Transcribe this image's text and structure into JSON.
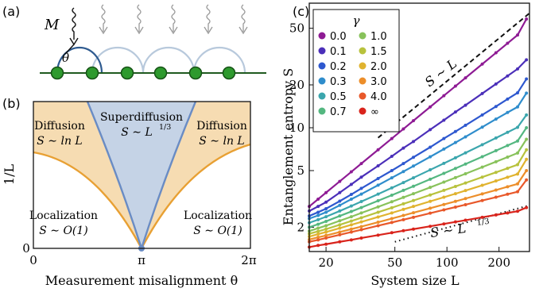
{
  "panel_a": {
    "label": "(a)",
    "measurement_symbol": "M",
    "angle_symbol": "θ"
  },
  "panel_b": {
    "label": "(b)",
    "ylabel": "1/L",
    "xlabel": "Measurement misalignment θ",
    "xticks": [
      "0",
      "π",
      "2π"
    ],
    "yticks": [
      "0"
    ],
    "regions": [
      {
        "line1": "Diffusion",
        "line2": "S ∼ ln L"
      },
      {
        "line1": "Superdiffusion",
        "line2": "S ∼ L",
        "sup": "1/3"
      },
      {
        "line1": "Diffusion",
        "line2": "S ∼ ln L"
      },
      {
        "line1": "Localization",
        "line2": "S ∼ O(1)"
      },
      {
        "line1": "Localization",
        "line2": "S ∼ O(1)"
      }
    ],
    "colors": {
      "diffusion_fill": "#f6dcb2",
      "diffusion_line": "#e8a033",
      "superdiffusion_fill": "#c5d3e6",
      "superdiffusion_line": "#6a8cc4"
    }
  },
  "panel_c": {
    "label": "(c)",
    "legend_title": "γ",
    "annotation_linear": "S ∼ L",
    "annotation_power": "S ∼ L",
    "annotation_power_sup": "1/3"
  },
  "chart_data": {
    "type": "line",
    "title": "",
    "xlabel": "System size L",
    "ylabel": "Entanglement entropy S",
    "xscale": "log",
    "yscale": "log",
    "xlim": [
      16,
      300
    ],
    "ylim": [
      1.35,
      75
    ],
    "xticks": [
      20,
      50,
      100,
      200
    ],
    "yticks": [
      2,
      5,
      10,
      20,
      50
    ],
    "legend_position": "top-left",
    "x": [
      16,
      18,
      20,
      24,
      28,
      32,
      40,
      48,
      56,
      64,
      80,
      96,
      112,
      128,
      160,
      192,
      224,
      256,
      288
    ],
    "series": [
      {
        "name": "0.0",
        "color": "#8e1b94",
        "values": [
          2.8,
          3.15,
          3.5,
          4.2,
          4.9,
          5.6,
          7.0,
          8.4,
          9.8,
          11.2,
          14.0,
          16.8,
          19.6,
          22.4,
          28.0,
          33.6,
          39.2,
          44.8,
          58.0
        ]
      },
      {
        "name": "0.1",
        "color": "#4b2fb9",
        "values": [
          2.6,
          2.8,
          3.0,
          3.5,
          4.0,
          4.5,
          5.4,
          6.3,
          7.2,
          8.0,
          9.7,
          11.3,
          12.9,
          14.4,
          17.4,
          20.3,
          23.1,
          25.9,
          30.0
        ]
      },
      {
        "name": "0.2",
        "color": "#2e58cf",
        "values": [
          2.4,
          2.55,
          2.7,
          3.05,
          3.4,
          3.75,
          4.4,
          5.0,
          5.6,
          6.2,
          7.3,
          8.4,
          9.4,
          10.4,
          12.3,
          14.1,
          15.9,
          17.6,
          22.0
        ]
      },
      {
        "name": "0.3",
        "color": "#2f8dcc",
        "values": [
          2.3,
          2.42,
          2.55,
          2.85,
          3.15,
          3.42,
          3.95,
          4.45,
          4.92,
          5.38,
          6.25,
          7.08,
          7.87,
          8.63,
          10.1,
          11.5,
          12.8,
          14.0,
          17.5
        ]
      },
      {
        "name": "0.5",
        "color": "#3ba6ad",
        "values": [
          2.15,
          2.26,
          2.37,
          2.6,
          2.82,
          3.03,
          3.42,
          3.78,
          4.12,
          4.45,
          5.06,
          5.62,
          6.15,
          6.66,
          7.6,
          8.47,
          9.29,
          10.07,
          12.3
        ]
      },
      {
        "name": "0.7",
        "color": "#54b780",
        "values": [
          2.0,
          2.1,
          2.2,
          2.4,
          2.58,
          2.75,
          3.07,
          3.36,
          3.63,
          3.88,
          4.35,
          4.78,
          5.18,
          5.56,
          6.26,
          6.9,
          7.5,
          8.06,
          10.0
        ]
      },
      {
        "name": "1.0",
        "color": "#88c25b",
        "values": [
          1.88,
          1.97,
          2.05,
          2.22,
          2.37,
          2.52,
          2.78,
          3.02,
          3.24,
          3.44,
          3.81,
          4.15,
          4.46,
          4.75,
          5.29,
          5.77,
          6.22,
          6.64,
          8.3
        ]
      },
      {
        "name": "1.5",
        "color": "#b8c23d",
        "values": [
          1.8,
          1.87,
          1.94,
          2.08,
          2.21,
          2.33,
          2.55,
          2.74,
          2.92,
          3.08,
          3.37,
          3.63,
          3.87,
          4.09,
          4.5,
          4.86,
          5.19,
          5.5,
          7.0
        ]
      },
      {
        "name": "2.0",
        "color": "#e0b32f",
        "values": [
          1.72,
          1.79,
          1.85,
          1.97,
          2.08,
          2.18,
          2.36,
          2.52,
          2.67,
          2.8,
          3.04,
          3.25,
          3.44,
          3.62,
          3.94,
          4.23,
          4.49,
          4.73,
          6.0
        ]
      },
      {
        "name": "3.0",
        "color": "#ec8e2a",
        "values": [
          1.64,
          1.7,
          1.75,
          1.85,
          1.94,
          2.02,
          2.17,
          2.3,
          2.42,
          2.53,
          2.72,
          2.89,
          3.04,
          3.18,
          3.43,
          3.65,
          3.85,
          4.03,
          5.0
        ]
      },
      {
        "name": "4.0",
        "color": "#e8582a",
        "values": [
          1.58,
          1.63,
          1.68,
          1.77,
          1.85,
          1.92,
          2.05,
          2.16,
          2.26,
          2.35,
          2.51,
          2.65,
          2.77,
          2.88,
          3.08,
          3.25,
          3.41,
          3.55,
          4.3
        ]
      },
      {
        "name": "∞",
        "color": "#d9241c",
        "values": [
          1.45,
          1.49,
          1.52,
          1.58,
          1.63,
          1.68,
          1.76,
          1.83,
          1.89,
          1.94,
          2.03,
          2.11,
          2.18,
          2.24,
          2.35,
          2.44,
          2.52,
          2.59,
          2.75
        ]
      }
    ]
  }
}
